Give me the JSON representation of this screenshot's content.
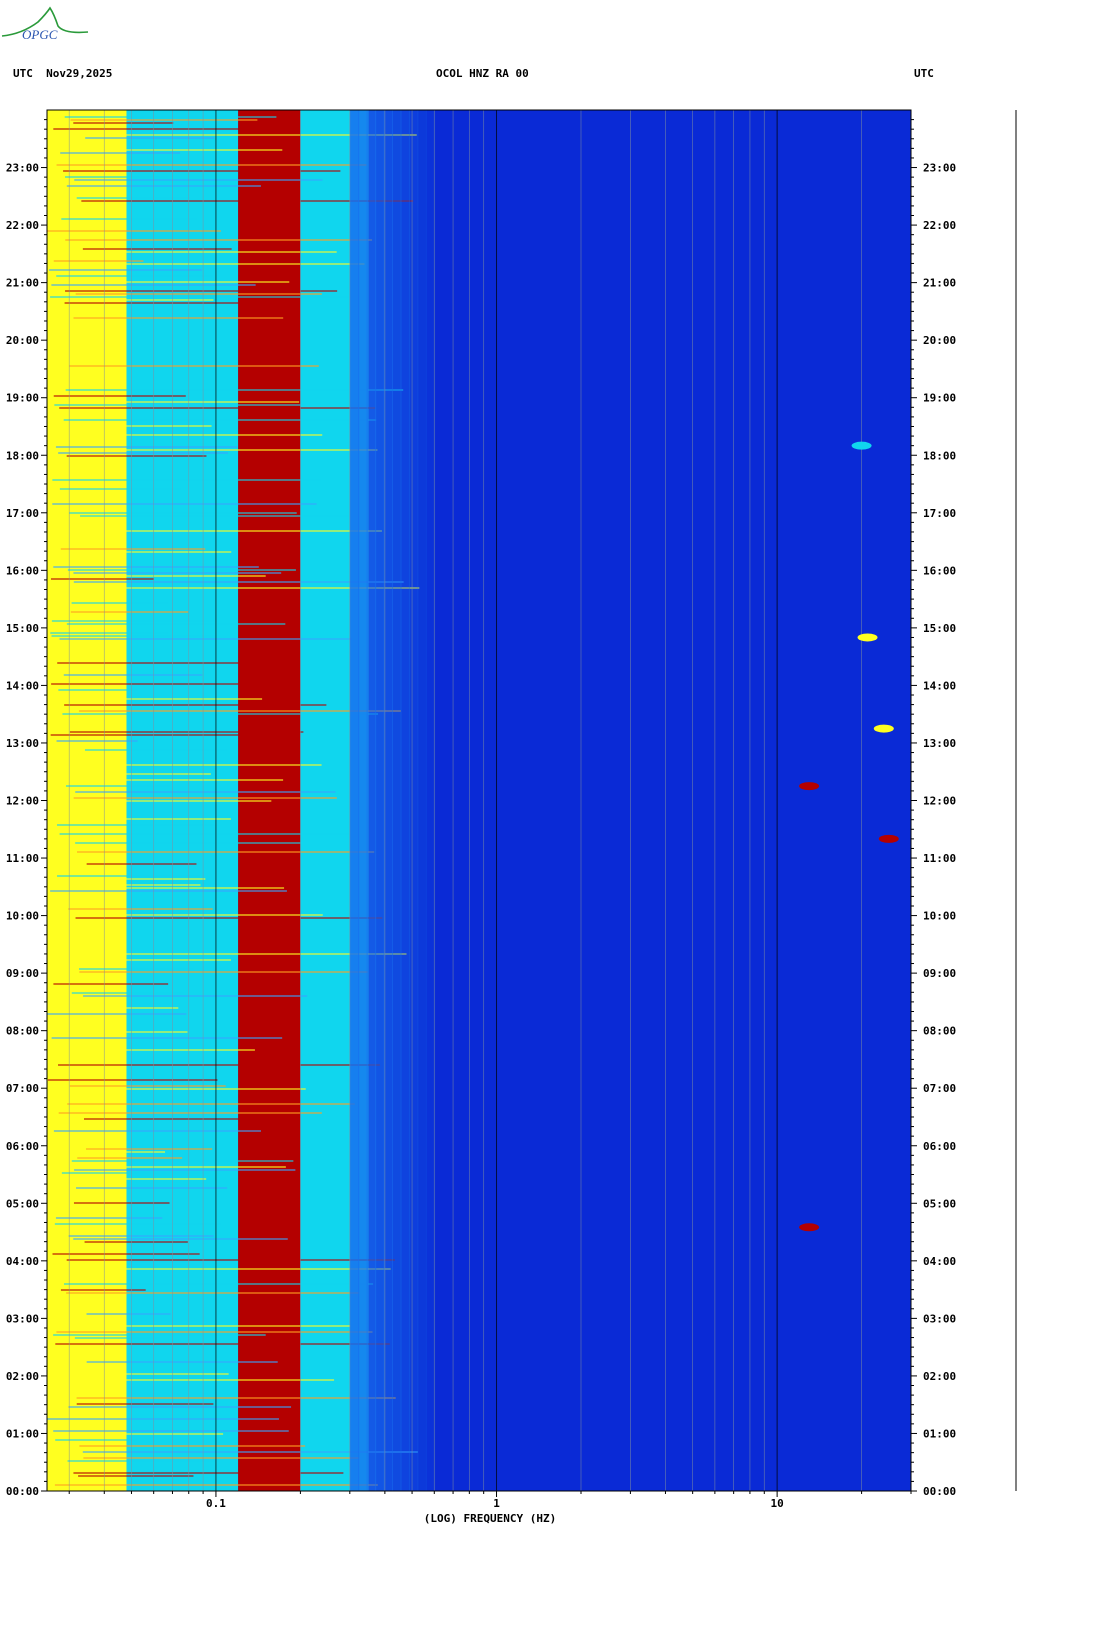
{
  "logo": {
    "text": "OPGC"
  },
  "header": {
    "left": "UTC  Nov29,2025",
    "center": "OCOL HNZ RA 00",
    "right": "UTC"
  },
  "colors": {
    "low": "#0a2ad6",
    "mid": "#10d6ee",
    "high": "#ffff20",
    "peak": "#b40000"
  },
  "chart_data": {
    "type": "heatmap",
    "title": "OCOL HNZ RA 00",
    "xlabel": "(LOG) FREQUENCY (HZ)",
    "ylabel": "UTC",
    "x_scale": "log",
    "xlim": [
      0.025,
      30
    ],
    "x_ticks": [
      {
        "value": 0.1,
        "label": "0.1"
      },
      {
        "value": 1,
        "label": "1"
      },
      {
        "value": 10,
        "label": "10"
      }
    ],
    "ylim": [
      "00:00",
      "24:00"
    ],
    "y_ticks": [
      "00:00",
      "01:00",
      "02:00",
      "03:00",
      "04:00",
      "05:00",
      "06:00",
      "07:00",
      "08:00",
      "09:00",
      "10:00",
      "11:00",
      "12:00",
      "13:00",
      "14:00",
      "15:00",
      "16:00",
      "17:00",
      "18:00",
      "19:00",
      "20:00",
      "21:00",
      "22:00",
      "23:00"
    ],
    "bands": [
      {
        "freq_range": [
          0.025,
          0.048
        ],
        "level": "high"
      },
      {
        "freq_range": [
          0.048,
          0.12
        ],
        "level": "mid"
      },
      {
        "freq_range": [
          0.12,
          0.2
        ],
        "level": "peak"
      },
      {
        "freq_range": [
          0.2,
          0.35
        ],
        "level": "mid"
      },
      {
        "freq_range": [
          0.35,
          30
        ],
        "level": "low"
      }
    ],
    "events": [
      {
        "time": "04:35",
        "freq": 13,
        "level": "peak"
      },
      {
        "time": "12:15",
        "freq": 13,
        "level": "peak"
      },
      {
        "time": "11:20",
        "freq": 25,
        "level": "peak"
      },
      {
        "time": "14:50",
        "freq": 21,
        "level": "high"
      },
      {
        "time": "13:15",
        "freq": 24,
        "level": "high"
      },
      {
        "time": "18:10",
        "freq": 20,
        "level": "mid"
      }
    ],
    "grid": true
  }
}
